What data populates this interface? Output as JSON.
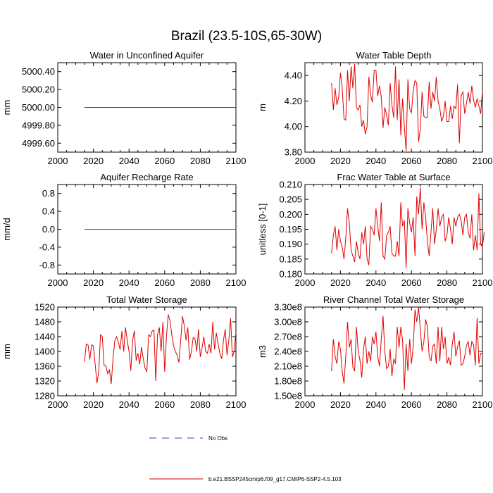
{
  "page_title": "Brazil (23.5-10S,65-30W)",
  "legend": {
    "entries": [
      {
        "label": "No Obs",
        "color": "#3f3fa8",
        "dash": "10,8"
      },
      {
        "label": "b.e21.BSSP245cmip6.f09_g17.CMIP6-SSP2-4.5.103",
        "color": "#e00000",
        "dash": ""
      }
    ]
  },
  "chart_data": [
    {
      "type": "line",
      "title": "Water in Unconfined Aquifer",
      "ylabel": "mm",
      "xlim": [
        2000,
        2100
      ],
      "ylim": [
        4999.5,
        5000.5
      ],
      "xticks": [
        2000,
        2020,
        2040,
        2060,
        2080,
        2100
      ],
      "yticks": [
        4999.6,
        4999.8,
        5000.0,
        5000.2,
        5000.4
      ],
      "ytick_labels": [
        "4999.60",
        "4999.80",
        "5000.00",
        "5000.20",
        "5000.40"
      ],
      "x": [
        2015,
        2100
      ],
      "values": [
        5000.0,
        5000.0
      ]
    },
    {
      "type": "line",
      "title": "Water Table Depth",
      "ylabel": "m",
      "xlim": [
        2000,
        2100
      ],
      "ylim": [
        3.8,
        4.5
      ],
      "xticks": [
        2000,
        2020,
        2040,
        2060,
        2080,
        2100
      ],
      "yticks": [
        3.8,
        4.0,
        4.2,
        4.4
      ],
      "ytick_labels": [
        "3.80",
        "4.00",
        "4.20",
        "4.40"
      ],
      "x_start": 2015,
      "values": [
        4.34,
        4.13,
        4.3,
        4.17,
        4.23,
        4.42,
        4.3,
        4.06,
        4.05,
        4.44,
        4.2,
        4.47,
        4.3,
        4.49,
        4.15,
        4.13,
        4.17,
        4.0,
        4.05,
        3.94,
        4.0,
        4.39,
        4.25,
        4.19,
        4.44,
        4.44,
        4.24,
        4.32,
        4.23,
        3.99,
        4.15,
        4.09,
        4.01,
        4.34,
        4.17,
        4.07,
        4.47,
        4.05,
        4.37,
        3.93,
        4.22,
        4.0,
        3.81,
        4.37,
        4.14,
        4.11,
        4.28,
        4.36,
        4.34,
        3.88,
        3.98,
        4.27,
        4.08,
        4.07,
        4.07,
        4.35,
        4.14,
        4.27,
        4.2,
        4.39,
        4.2,
        4.14,
        4.04,
        4.08,
        4.2,
        4.04,
        4.04,
        4.16,
        4.06,
        4.16,
        4.14,
        4.33,
        3.87,
        4.24,
        4.27,
        4.1,
        4.18,
        4.27,
        4.18,
        4.32,
        4.21,
        4.15,
        4.22,
        4.16,
        4.1,
        4.28
      ]
    },
    {
      "type": "line",
      "title": "Aquifer Recharge Rate",
      "ylabel": "mm/d",
      "xlim": [
        2000,
        2100
      ],
      "ylim": [
        -1.0,
        1.0
      ],
      "xticks": [
        2000,
        2020,
        2040,
        2060,
        2080,
        2100
      ],
      "yticks": [
        -0.8,
        -0.4,
        0.0,
        0.4,
        0.8
      ],
      "ytick_labels": [
        "-0.8",
        "-0.4",
        "0.0",
        "0.4",
        "0.8"
      ],
      "x": [
        2015,
        2100
      ],
      "values": [
        0.0,
        0.0
      ]
    },
    {
      "type": "line",
      "title": "Frac Water Table at Surface",
      "ylabel": "unitless [0-1]",
      "xlim": [
        2000,
        2100
      ],
      "ylim": [
        0.18,
        0.21
      ],
      "xticks": [
        2000,
        2020,
        2040,
        2060,
        2080,
        2100
      ],
      "yticks": [
        0.18,
        0.185,
        0.19,
        0.195,
        0.2,
        0.205,
        0.21
      ],
      "ytick_labels": [
        "0.180",
        "0.185",
        "0.190",
        "0.195",
        "0.200",
        "0.205",
        "0.210"
      ],
      "x_start": 2015,
      "values": [
        0.187,
        0.193,
        0.196,
        0.188,
        0.195,
        0.191,
        0.189,
        0.185,
        0.192,
        0.202,
        0.197,
        0.188,
        0.186,
        0.184,
        0.191,
        0.187,
        0.185,
        0.194,
        0.19,
        0.196,
        0.185,
        0.183,
        0.196,
        0.195,
        0.193,
        0.202,
        0.196,
        0.191,
        0.204,
        0.186,
        0.185,
        0.193,
        0.194,
        0.196,
        0.187,
        0.186,
        0.186,
        0.191,
        0.186,
        0.204,
        0.196,
        0.198,
        0.182,
        0.202,
        0.197,
        0.194,
        0.199,
        0.186,
        0.206,
        0.2,
        0.209,
        0.195,
        0.204,
        0.199,
        0.191,
        0.186,
        0.194,
        0.202,
        0.19,
        0.195,
        0.202,
        0.196,
        0.199,
        0.2,
        0.191,
        0.193,
        0.199,
        0.195,
        0.19,
        0.199,
        0.196,
        0.199,
        0.2,
        0.198,
        0.193,
        0.199,
        0.2,
        0.194,
        0.192,
        0.2,
        0.188,
        0.193,
        0.188,
        0.207,
        0.19,
        0.189,
        0.194
      ]
    },
    {
      "type": "line",
      "title": "Total Water Storage",
      "ylabel": "mm",
      "xlim": [
        2000,
        2100
      ],
      "ylim": [
        1280,
        1520
      ],
      "xticks": [
        2000,
        2020,
        2040,
        2060,
        2080,
        2100
      ],
      "yticks": [
        1280,
        1320,
        1360,
        1400,
        1440,
        1480,
        1520
      ],
      "ytick_labels": [
        "1280",
        "1320",
        "1360",
        "1400",
        "1440",
        "1480",
        "1520"
      ],
      "x_start": 2015,
      "values": [
        1372,
        1420,
        1418,
        1378,
        1418,
        1415,
        1365,
        1314,
        1345,
        1445,
        1440,
        1362,
        1362,
        1340,
        1350,
        1312,
        1380,
        1428,
        1440,
        1425,
        1405,
        1455,
        1400,
        1465,
        1430,
        1400,
        1348,
        1430,
        1456,
        1375,
        1395,
        1365,
        1412,
        1380,
        1355,
        1345,
        1445,
        1440,
        1455,
        1458,
        1320,
        1445,
        1465,
        1400,
        1480,
        1345,
        1440,
        1500,
        1483,
        1445,
        1415,
        1400,
        1390,
        1370,
        1430,
        1495,
        1470,
        1430,
        1465,
        1378,
        1400,
        1438,
        1435,
        1400,
        1460,
        1385,
        1410,
        1440,
        1400,
        1395,
        1420,
        1395,
        1480,
        1405,
        1450,
        1420,
        1395,
        1380,
        1430,
        1460,
        1390,
        1430,
        1490,
        1385,
        1400,
        1453
      ]
    },
    {
      "type": "line",
      "title": "River Channel Total Water Storage",
      "ylabel": "m3",
      "xlim": [
        2000,
        2100
      ],
      "ylim": [
        150000000,
        330000000
      ],
      "xticks": [
        2000,
        2020,
        2040,
        2060,
        2080,
        2100
      ],
      "yticks": [
        150000000,
        180000000,
        210000000,
        240000000,
        270000000,
        300000000,
        330000000
      ],
      "ytick_labels": [
        "1.50e8",
        "1.80e8",
        "2.10e8",
        "2.40e8",
        "2.70e8",
        "3.00e8",
        "3.30e8"
      ],
      "x_start": 2015,
      "values": [
        200000000,
        265000000,
        230000000,
        215000000,
        260000000,
        245000000,
        200000000,
        175000000,
        230000000,
        300000000,
        248000000,
        265000000,
        208000000,
        200000000,
        290000000,
        240000000,
        222000000,
        187000000,
        245000000,
        270000000,
        215000000,
        240000000,
        220000000,
        270000000,
        255000000,
        280000000,
        230000000,
        210000000,
        265000000,
        312000000,
        240000000,
        205000000,
        210000000,
        245000000,
        190000000,
        225000000,
        215000000,
        290000000,
        248000000,
        290000000,
        263000000,
        162000000,
        255000000,
        200000000,
        265000000,
        215000000,
        250000000,
        325000000,
        300000000,
        330000000,
        285000000,
        240000000,
        260000000,
        305000000,
        290000000,
        230000000,
        220000000,
        250000000,
        255000000,
        215000000,
        290000000,
        220000000,
        290000000,
        245000000,
        270000000,
        215000000,
        228000000,
        212000000,
        254000000,
        280000000,
        230000000,
        250000000,
        262000000,
        212000000,
        215000000,
        230000000,
        252000000,
        260000000,
        232000000,
        260000000,
        254000000,
        212000000,
        308000000,
        215000000,
        236000000,
        237000000
      ]
    }
  ]
}
